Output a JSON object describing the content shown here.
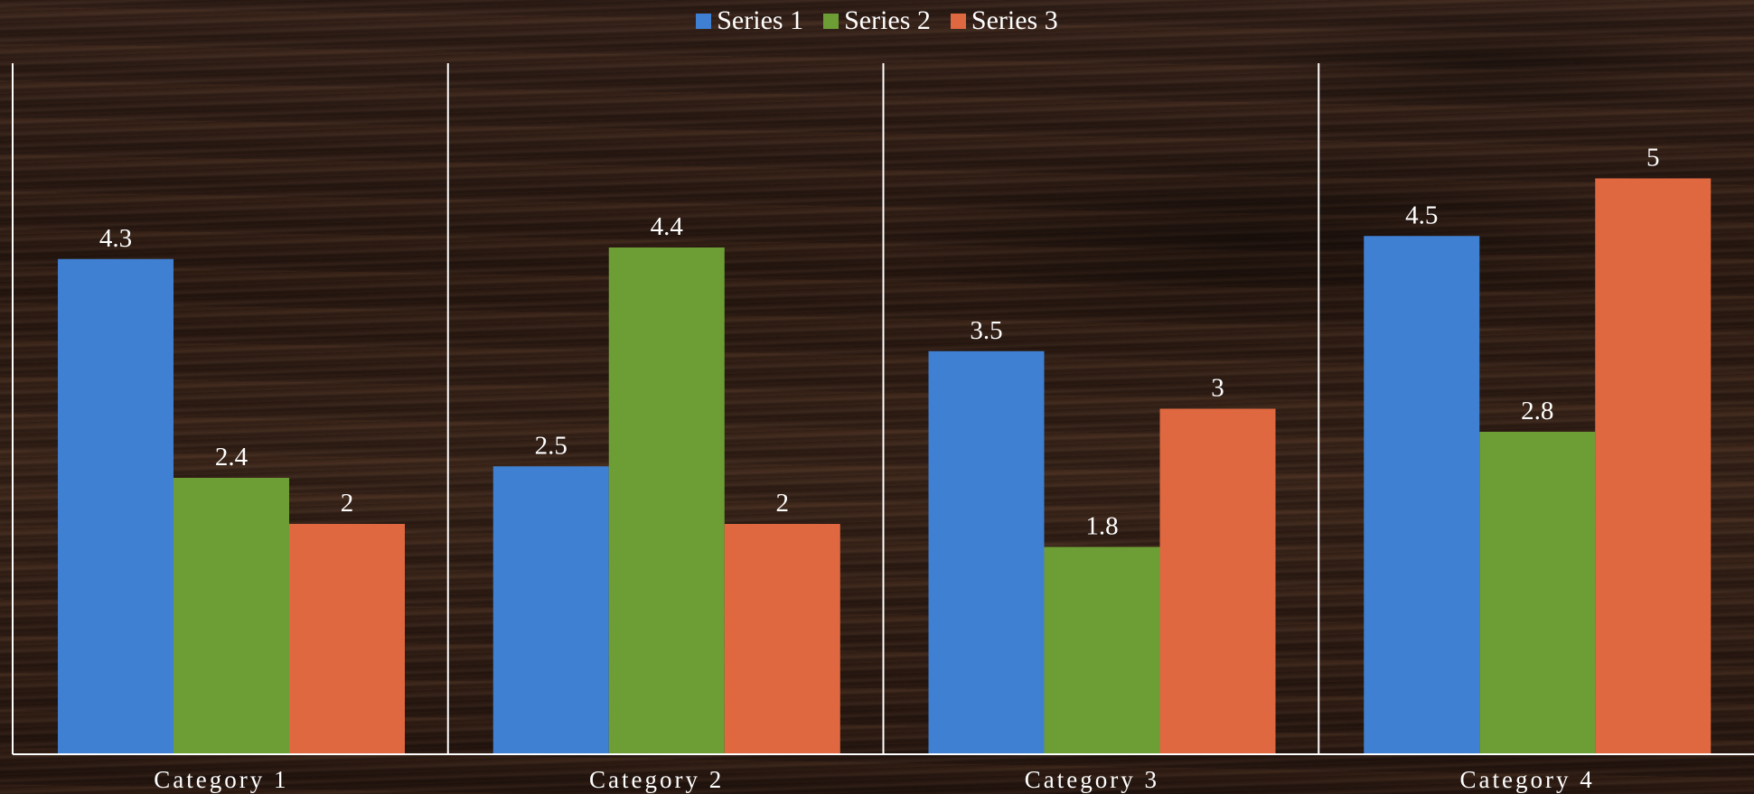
{
  "chart_data": {
    "type": "bar",
    "categories": [
      "Category 1",
      "Category 2",
      "Category 3",
      "Category 4"
    ],
    "series": [
      {
        "name": "Series 1",
        "values": [
          4.3,
          2.5,
          3.5,
          4.5
        ],
        "color": "#3f80d2"
      },
      {
        "name": "Series 2",
        "values": [
          2.4,
          4.4,
          1.8,
          2.8
        ],
        "color": "#6d9e35"
      },
      {
        "name": "Series 3",
        "values": [
          2,
          2,
          3,
          5
        ],
        "color": "#e06840"
      }
    ],
    "title": "",
    "xlabel": "",
    "ylabel": "",
    "ylim": [
      0,
      6
    ],
    "grid": false,
    "legend_position": "top",
    "data_labels": true,
    "label_color": "#ffffff",
    "axis_color": "#ffffff"
  }
}
